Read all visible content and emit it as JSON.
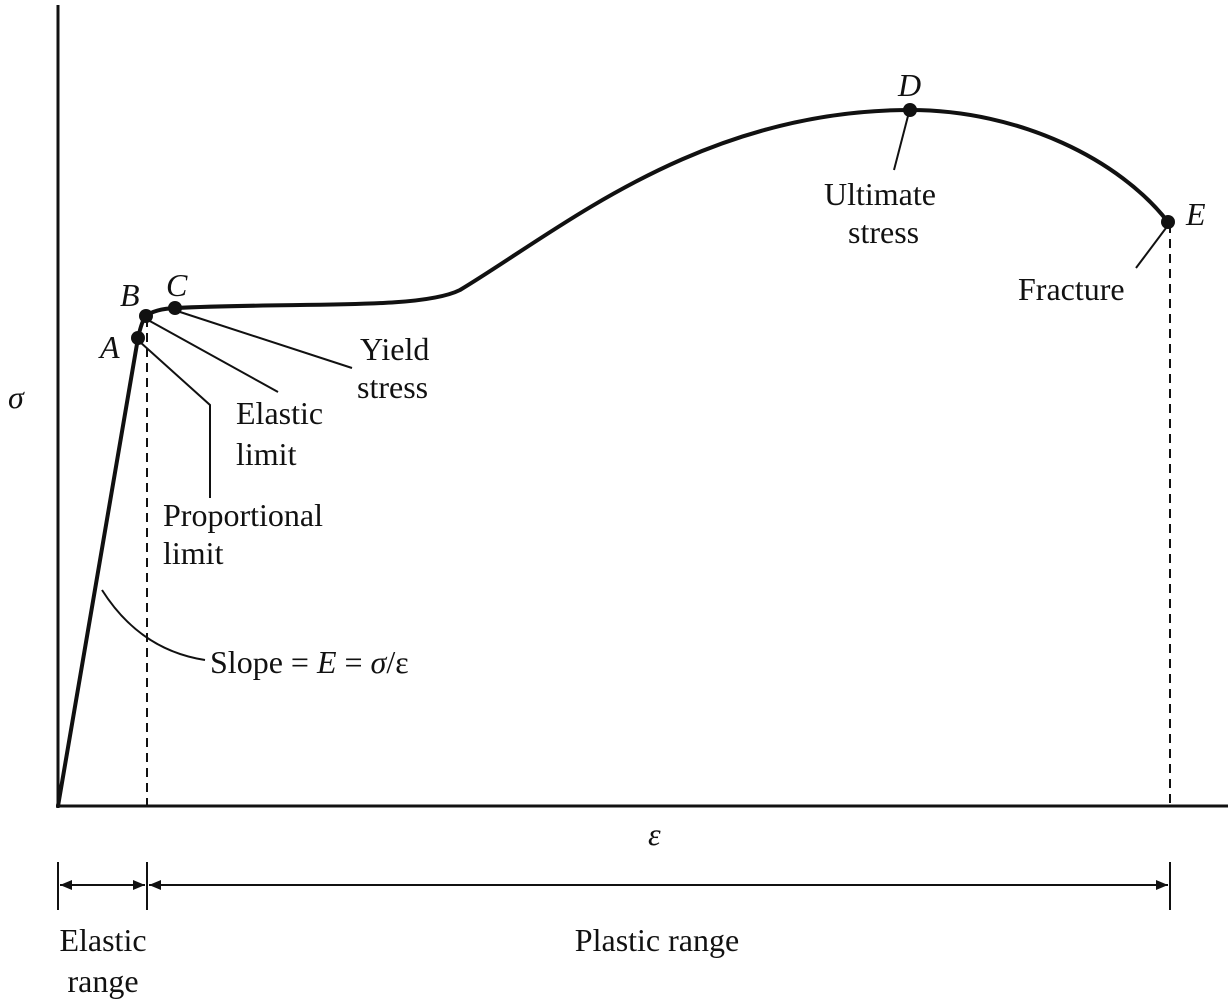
{
  "axes": {
    "y_label": "σ",
    "x_label": "ε"
  },
  "points": [
    {
      "label": "A"
    },
    {
      "label": "B"
    },
    {
      "label": "C"
    },
    {
      "label": "D"
    },
    {
      "label": "E"
    }
  ],
  "annotations": {
    "proportional_limit": [
      "Proportional",
      "limit"
    ],
    "elastic_limit": [
      "Elastic",
      "limit"
    ],
    "yield_stress": [
      "Yield",
      "stress"
    ],
    "ultimate_stress": [
      "Ultimate",
      "stress"
    ],
    "fracture": [
      "Fracture"
    ],
    "slope": [
      "Slope = ",
      "E",
      " = ",
      "σ",
      "/ε"
    ]
  },
  "ranges": {
    "elastic": [
      "Elastic",
      "range"
    ],
    "plastic": [
      "Plastic range"
    ]
  }
}
